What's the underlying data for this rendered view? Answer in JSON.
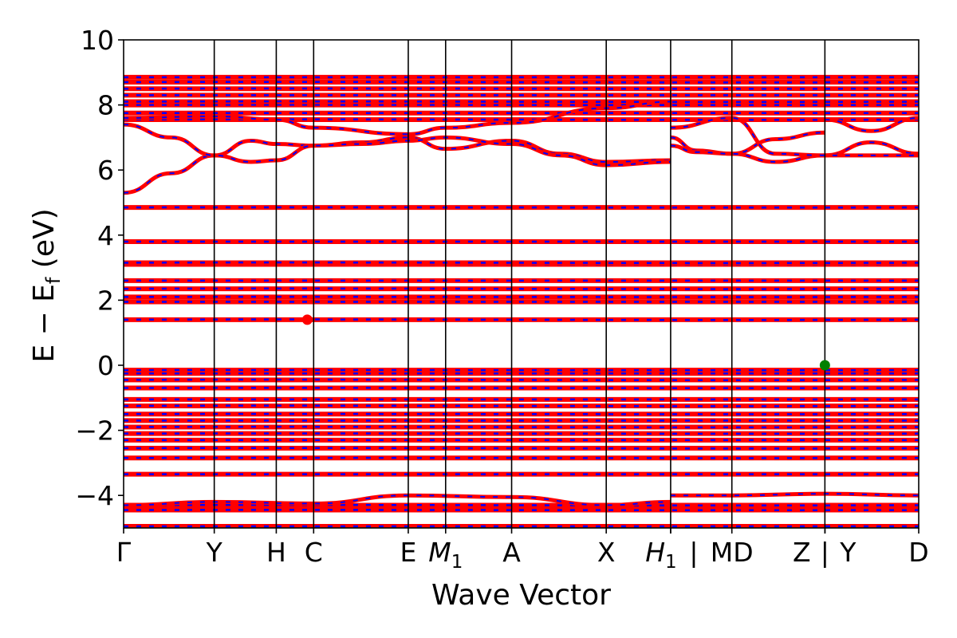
{
  "chart_data": {
    "type": "line",
    "title": "",
    "xlabel": "Wave Vector",
    "ylabel": {
      "main": "E − E",
      "sub": "f",
      "unit": " (eV)"
    },
    "ylim": [
      -5,
      10
    ],
    "xlim": [
      0,
      1
    ],
    "yticks": [
      -4,
      -2,
      0,
      2,
      4,
      6,
      8,
      10
    ],
    "ytick_labels": [
      "−4",
      "−2",
      "0",
      "2",
      "4",
      "6",
      "8",
      "10"
    ],
    "kpoints": [
      {
        "pos": 0.0,
        "label": "Γ",
        "italic": false
      },
      {
        "pos": 0.114,
        "label": "Y",
        "italic": false
      },
      {
        "pos": 0.192,
        "label": "H",
        "italic": false
      },
      {
        "pos": 0.239,
        "label": "C",
        "italic": false
      },
      {
        "pos": 0.358,
        "label": "E",
        "italic": false
      },
      {
        "pos": 0.405,
        "label": "M",
        "sub": "1",
        "italic": true
      },
      {
        "pos": 0.488,
        "label": "A",
        "italic": false
      },
      {
        "pos": 0.607,
        "label": "X",
        "italic": false
      },
      {
        "pos": 0.688,
        "label": "H",
        "sub": "1",
        "italic": true
      },
      {
        "pos": 0.688,
        "label": "|",
        "italic": false
      },
      {
        "pos": 0.765,
        "label": "MD",
        "italic": false
      },
      {
        "pos": 0.882,
        "label": "Z",
        "italic": false
      },
      {
        "pos": 0.882,
        "label": "|",
        "italic": false
      },
      {
        "pos": 0.882,
        "label": "Y",
        "italic": false
      },
      {
        "pos": 1.0,
        "label": "D",
        "italic": false
      }
    ],
    "series_colors": {
      "up": "#ff0000",
      "down": "#0000ff"
    },
    "flat_bands": [
      -4.95,
      -4.45,
      -4.3,
      -3.35,
      -2.85,
      -2.55,
      -2.3,
      -2.1,
      -1.9,
      -1.7,
      -1.5,
      -1.25,
      -1.05,
      -0.7,
      -0.45,
      -0.25,
      -0.15,
      1.4,
      1.95,
      2.1,
      2.35,
      2.6,
      3.1,
      3.15,
      3.8,
      4.85,
      7.55,
      7.75,
      8.0,
      8.1,
      8.3,
      8.5,
      8.7,
      8.85
    ],
    "dispersive_bands": [
      {
        "points": [
          [
            0.0,
            5.3
          ],
          [
            0.06,
            5.9
          ],
          [
            0.114,
            6.45
          ],
          [
            0.16,
            6.9
          ],
          [
            0.192,
            6.8
          ],
          [
            0.239,
            6.75
          ],
          [
            0.3,
            6.85
          ],
          [
            0.358,
            7.0
          ],
          [
            0.405,
            6.65
          ],
          [
            0.488,
            6.9
          ],
          [
            0.55,
            6.5
          ],
          [
            0.607,
            6.25
          ],
          [
            0.688,
            6.3
          ]
        ]
      },
      {
        "points": [
          [
            0.0,
            7.4
          ],
          [
            0.06,
            7.0
          ],
          [
            0.114,
            6.45
          ],
          [
            0.16,
            6.25
          ],
          [
            0.192,
            6.3
          ],
          [
            0.239,
            6.75
          ],
          [
            0.3,
            6.8
          ],
          [
            0.358,
            6.9
          ],
          [
            0.405,
            7.0
          ],
          [
            0.488,
            6.8
          ],
          [
            0.55,
            6.45
          ],
          [
            0.607,
            6.15
          ],
          [
            0.688,
            6.25
          ]
        ]
      },
      {
        "points": [
          [
            0.0,
            7.6
          ],
          [
            0.114,
            7.65
          ],
          [
            0.192,
            7.55
          ],
          [
            0.239,
            7.3
          ],
          [
            0.358,
            7.1
          ],
          [
            0.405,
            7.3
          ],
          [
            0.488,
            7.45
          ],
          [
            0.607,
            7.9
          ],
          [
            0.688,
            8.1
          ]
        ]
      },
      {
        "points": [
          [
            0.688,
            7.0
          ],
          [
            0.72,
            6.6
          ],
          [
            0.765,
            6.5
          ],
          [
            0.82,
            6.95
          ],
          [
            0.882,
            7.15
          ]
        ]
      },
      {
        "points": [
          [
            0.688,
            6.75
          ],
          [
            0.72,
            6.55
          ],
          [
            0.765,
            6.5
          ],
          [
            0.82,
            6.25
          ],
          [
            0.882,
            6.45
          ],
          [
            0.94,
            6.85
          ],
          [
            1.0,
            6.5
          ]
        ]
      },
      {
        "points": [
          [
            0.688,
            7.3
          ],
          [
            0.765,
            7.6
          ],
          [
            0.82,
            6.5
          ],
          [
            0.882,
            6.45
          ],
          [
            0.94,
            6.45
          ],
          [
            1.0,
            6.45
          ]
        ]
      },
      {
        "points": [
          [
            0.882,
            7.55
          ],
          [
            0.94,
            7.2
          ],
          [
            1.0,
            7.6
          ]
        ]
      },
      {
        "points": [
          [
            0.688,
            -4.0
          ],
          [
            0.765,
            -4.0
          ],
          [
            0.882,
            -3.95
          ],
          [
            1.0,
            -4.0
          ]
        ]
      },
      {
        "points": [
          [
            0.0,
            -4.3
          ],
          [
            0.114,
            -4.2
          ],
          [
            0.239,
            -4.25
          ],
          [
            0.358,
            -4.0
          ],
          [
            0.488,
            -4.05
          ],
          [
            0.607,
            -4.3
          ],
          [
            0.688,
            -4.2
          ]
        ]
      }
    ],
    "markers": [
      {
        "x": 0.231,
        "y": 1.4,
        "color": "#ff0000",
        "label": ""
      },
      {
        "x": 0.882,
        "y": 0.0,
        "color": "#008000",
        "label": ""
      }
    ],
    "grid": false,
    "legend": "none"
  }
}
